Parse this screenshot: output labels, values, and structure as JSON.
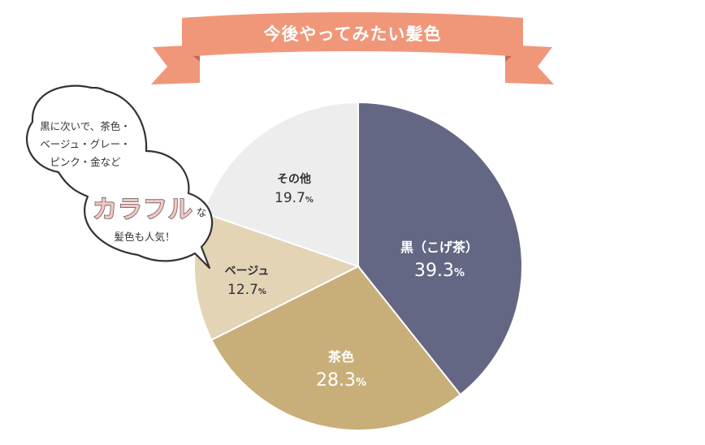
{
  "banner": {
    "title": "今後やってみたい髪色",
    "color": "#F0977A",
    "shade": "#D9785E"
  },
  "callout": {
    "lines": [
      "黒に次いで、茶色・",
      "ベージュ・グレー・",
      "ピンク・金など"
    ],
    "emphasis": "カラフル",
    "emphasis_suffix": "な",
    "last_line": "髪色も人気！"
  },
  "chart_data": {
    "type": "pie",
    "title": "今後やってみたい髪色",
    "slices": [
      {
        "label": "黒（こげ茶）",
        "value": 39.3,
        "display": "39.3",
        "color": "#646783"
      },
      {
        "label": "茶色",
        "value": 28.3,
        "display": "28.3",
        "color": "#C8AF79"
      },
      {
        "label": "ベージュ",
        "value": 12.7,
        "display": "12.7",
        "color": "#E3D4B6"
      },
      {
        "label": "その他",
        "value": 19.7,
        "display": "19.7",
        "color": "#EDEDED"
      }
    ],
    "unit": "%",
    "start": "12 o'clock",
    "direction": "clockwise"
  }
}
